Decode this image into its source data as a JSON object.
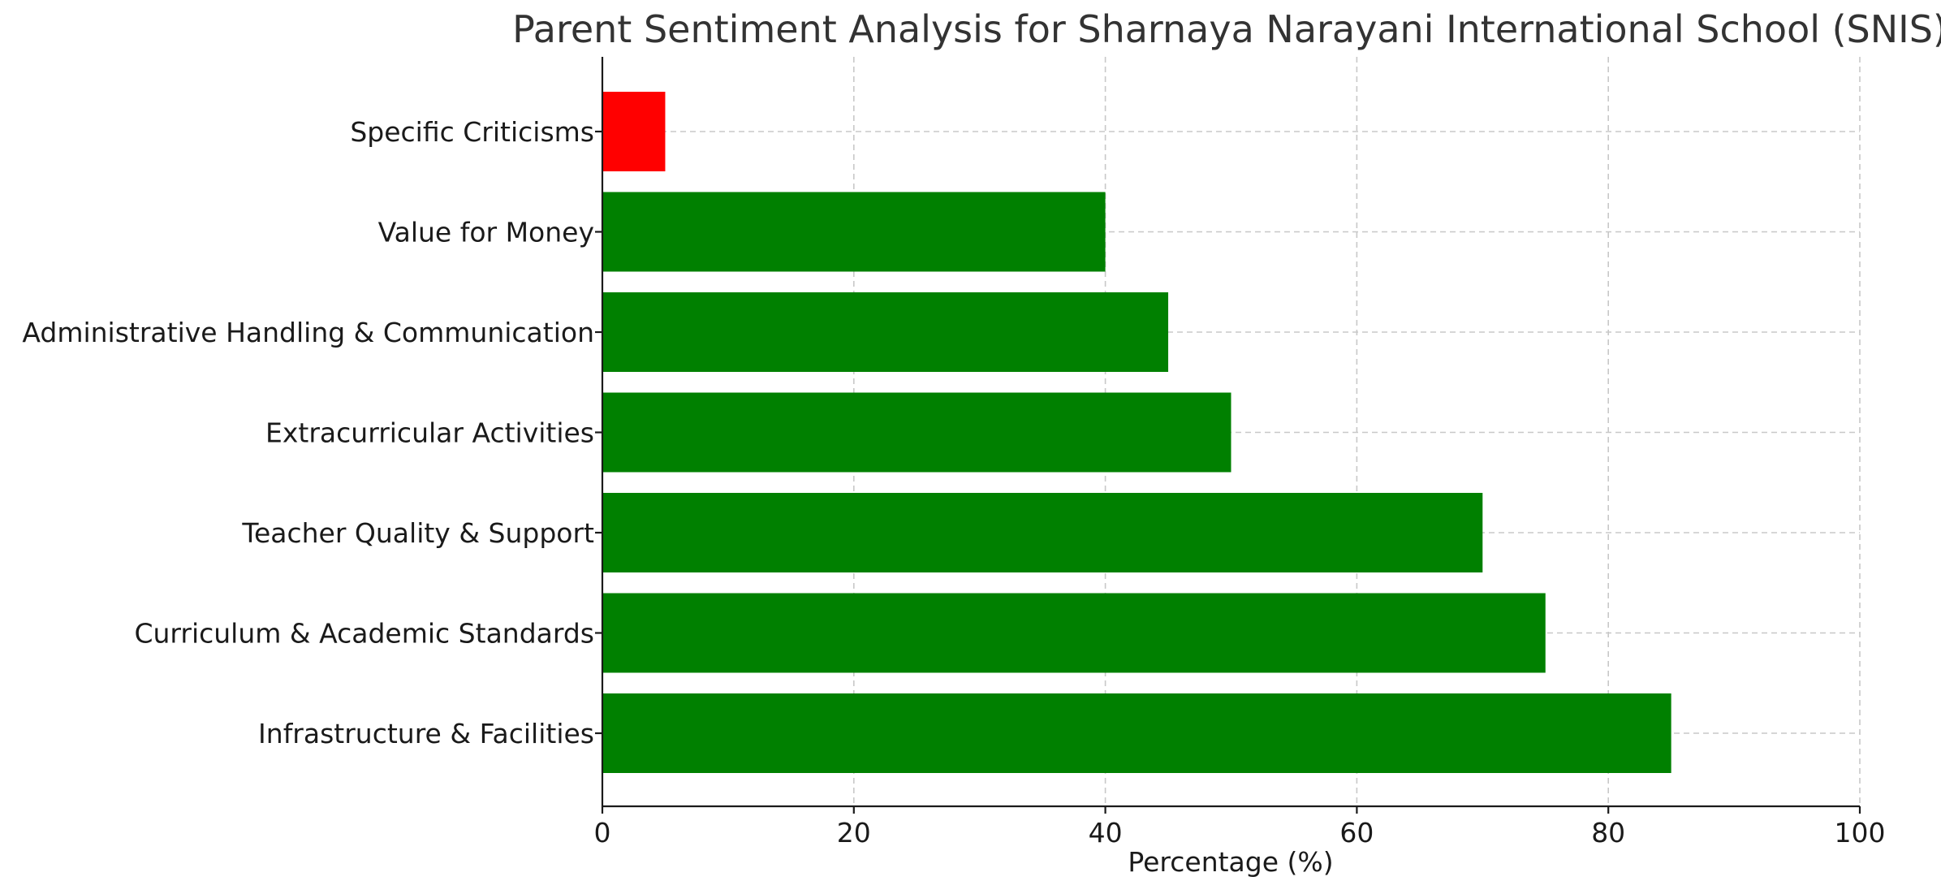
{
  "chart_data": {
    "type": "bar",
    "orientation": "horizontal",
    "title": "Parent Sentiment Analysis for Sharnaya Narayani International School (SNIS)",
    "xlabel": "Percentage (%)",
    "ylabel": "",
    "xlim": [
      0,
      100
    ],
    "xticks": [
      0,
      20,
      40,
      60,
      80,
      100
    ],
    "grid": true,
    "categories": [
      "Infrastructure & Facilities",
      "Curriculum & Academic Standards",
      "Teacher Quality & Support",
      "Extracurricular Activities",
      "Administrative Handling & Communication",
      "Value for Money",
      "Specific Criticisms"
    ],
    "values": [
      85,
      75,
      70,
      50,
      45,
      40,
      5
    ],
    "colors": [
      "#008000",
      "#008000",
      "#008000",
      "#008000",
      "#008000",
      "#008000",
      "#ff0000"
    ]
  }
}
